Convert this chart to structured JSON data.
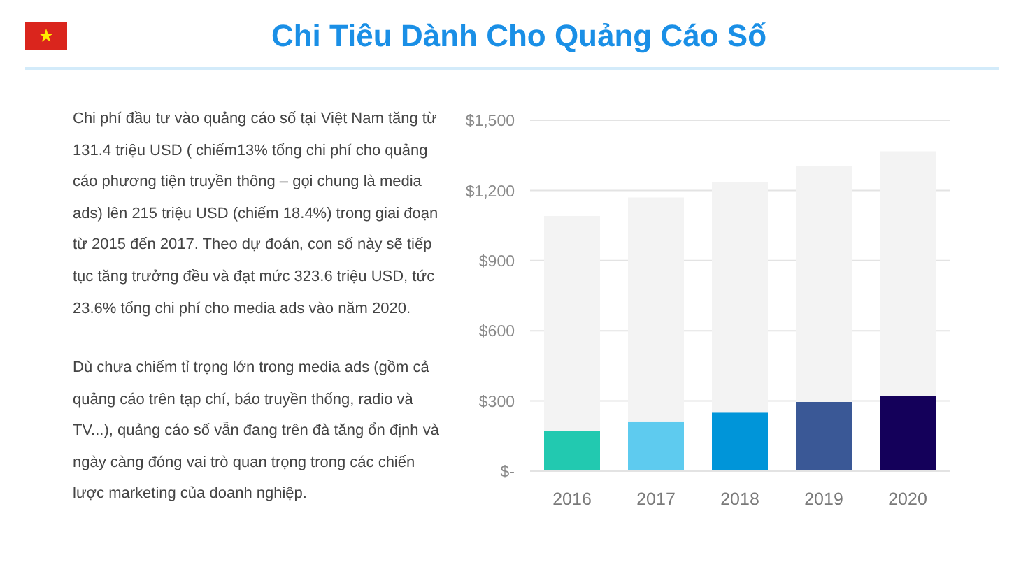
{
  "chart_data": {
    "type": "bar",
    "title": "Chi Tiêu Dành Cho Quảng Cáo Số",
    "categories": [
      "2016",
      "2017",
      "2018",
      "2019",
      "2020"
    ],
    "stacked": true,
    "series": [
      {
        "colors": [
          "#22c9b0",
          "#5ecbef",
          "#0095d9",
          "#3a5896",
          "#14005a"
        ],
        "values": [
          173,
          213,
          250,
          296,
          322
        ]
      },
      {
        "color": "#f3f3f3",
        "values": [
          918,
          957,
          986,
          1009,
          1045
        ]
      }
    ],
    "ylim": [
      0,
      1500
    ],
    "yticks": [
      {
        "value": 0,
        "label": "$-"
      },
      {
        "value": 300,
        "label": "$300"
      },
      {
        "value": 600,
        "label": "$600"
      },
      {
        "value": 900,
        "label": "$900"
      },
      {
        "value": 1200,
        "label": "$1,200"
      },
      {
        "value": 1500,
        "label": "$1,500"
      }
    ],
    "grid": "y",
    "annotations": [
      "Chi phí đầu tư vào quảng cáo số tại Việt Nam tăng từ 131.4 triệu USD ( chiếm13% tổng chi phí cho quảng cáo phương tiện truyền thông – gọi chung là media ads) lên 215 triệu USD (chiếm 18.4%) trong giai đoạn từ 2015 đến 2017. Theo dự đoán, con số này sẽ tiếp tục tăng trưởng đều và đạt mức 323.6 triệu USD, tức 23.6% tổng chi phí cho media ads vào năm 2020.",
      "Dù chưa chiếm tỉ trọng lớn trong media ads (gồm cả quảng cáo trên tạp chí, báo truyền thống, radio và TV...), quảng cáo số vẫn đang trên đà tăng ổn định và ngày càng đóng vai trò quan trọng trong các chiến lược marketing của doanh nghiệp."
    ]
  }
}
